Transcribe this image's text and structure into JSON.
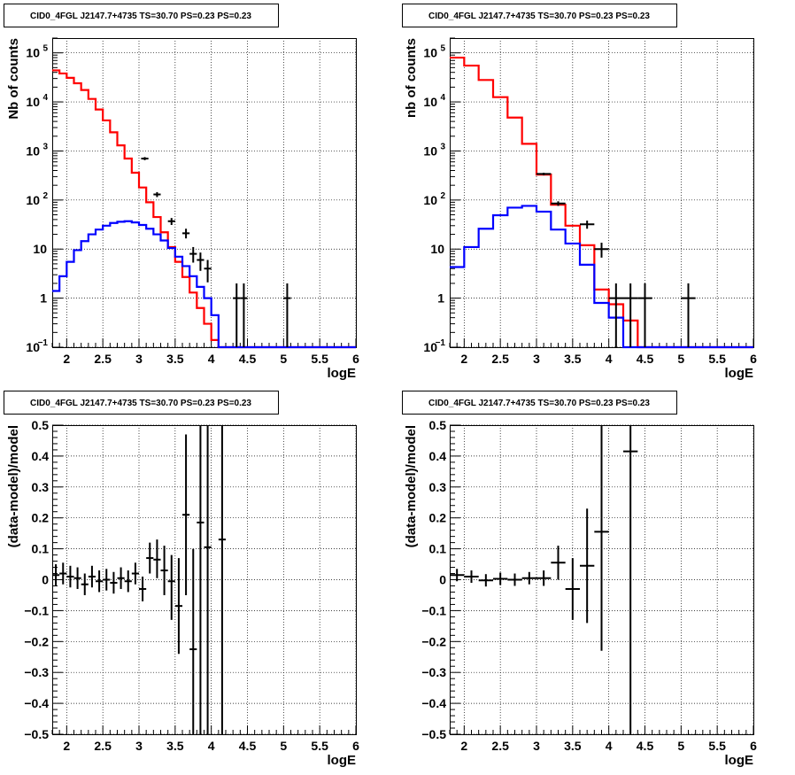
{
  "chart_data": [
    {
      "type": "histogram-log",
      "title": "CID0_4FGL J2147.7+4735 TS=30.70 PS=0.23 PS=0.23",
      "xlabel": "logE",
      "ylabel": "Nb of counts",
      "xlim": [
        1.8,
        6.0
      ],
      "ylim": [
        0.1,
        200000
      ],
      "log_y": true,
      "grid": true,
      "x_ticks": [
        "2",
        "2.5",
        "3",
        "3.5",
        "4",
        "4.5",
        "5",
        "5.5",
        "6"
      ],
      "y_ticks": [
        {
          "value": 0.1,
          "label": "10",
          "sup": "−1"
        },
        {
          "value": 1,
          "label": "1",
          "sup": ""
        },
        {
          "value": 10,
          "label": "10",
          "sup": ""
        },
        {
          "value": 100,
          "label": "10",
          "sup": "2"
        },
        {
          "value": 1000,
          "label": "10",
          "sup": "3"
        },
        {
          "value": 10000,
          "label": "10",
          "sup": "4"
        },
        {
          "value": 100000,
          "label": "10",
          "sup": "5"
        }
      ],
      "bin_edges": [
        1.8,
        1.9,
        2.0,
        2.1,
        2.2,
        2.3,
        2.4,
        2.5,
        2.6,
        2.7,
        2.8,
        2.9,
        3.0,
        3.1,
        3.2,
        3.3,
        3.4,
        3.5,
        3.6,
        3.7,
        3.8,
        3.9,
        4.0,
        4.1,
        4.2,
        4.3,
        4.4,
        4.5,
        4.6,
        4.7,
        4.8,
        4.9,
        5.0,
        5.1,
        5.2,
        5.3,
        5.4,
        5.5,
        5.6,
        5.7,
        5.8,
        5.9,
        6.0
      ],
      "series": [
        {
          "color": "#ff0000",
          "values": [
            44000,
            38000,
            31000,
            24000,
            17500,
            11500,
            7000,
            4200,
            2400,
            1300,
            700,
            360,
            180,
            90,
            45,
            22,
            11,
            5.5,
            2.7,
            1.3,
            0.63,
            0.3,
            0.14,
            0.1,
            0.1,
            0.1,
            0.1,
            0.1,
            0.1,
            0.1,
            0.1,
            0.1,
            0.1,
            0.1,
            0.1,
            0.1,
            0.1,
            0.1,
            0.1,
            0.1,
            0.1,
            0.1
          ]
        },
        {
          "color": "#0000ff",
          "values": [
            1.4,
            2.8,
            5.5,
            9.5,
            14.5,
            20,
            25,
            30,
            34,
            36,
            37,
            35,
            31,
            26,
            20,
            15,
            10.5,
            7,
            4.5,
            2.8,
            1.7,
            1.0,
            0.45,
            0.1,
            0.1,
            0.1,
            0.1,
            0.1,
            0.1,
            0.1,
            0.1,
            0.1,
            0.1,
            0.1,
            0.1,
            0.1,
            0.1,
            0.1,
            0.1,
            0.1,
            0.1,
            0.1
          ]
        }
      ],
      "points": [
        {
          "x": 3.08,
          "xerr": 0.05,
          "y": 700,
          "ylo": 650,
          "yhi": 750
        },
        {
          "x": 3.25,
          "xerr": 0.05,
          "y": 130,
          "ylo": 115,
          "yhi": 145
        },
        {
          "x": 3.45,
          "xerr": 0.05,
          "y": 37,
          "ylo": 31,
          "yhi": 43
        },
        {
          "x": 3.65,
          "xerr": 0.05,
          "y": 21,
          "ylo": 16.5,
          "yhi": 26
        },
        {
          "x": 3.75,
          "xerr": 0.05,
          "y": 8,
          "ylo": 5.3,
          "yhi": 11
        },
        {
          "x": 3.85,
          "xerr": 0.05,
          "y": 6,
          "ylo": 3.6,
          "yhi": 8.5
        },
        {
          "x": 3.95,
          "xerr": 0.05,
          "y": 4,
          "ylo": 2.1,
          "yhi": 6
        },
        {
          "x": 4.35,
          "xerr": 0.05,
          "y": 1,
          "ylo": 0.1,
          "yhi": 2
        },
        {
          "x": 4.45,
          "xerr": 0.05,
          "y": 1,
          "ylo": 0.1,
          "yhi": 2
        },
        {
          "x": 5.05,
          "xerr": 0.05,
          "y": 1,
          "ylo": 0.1,
          "yhi": 2
        }
      ]
    },
    {
      "type": "histogram-log",
      "title": "CID0_4FGL J2147.7+4735 TS=30.70 PS=0.23 PS=0.23",
      "xlabel": "logE",
      "ylabel": "nb of counts",
      "xlim": [
        1.8,
        6.0
      ],
      "ylim": [
        0.1,
        200000
      ],
      "log_y": true,
      "grid": true,
      "x_ticks": [
        "2",
        "2.5",
        "3",
        "3.5",
        "4",
        "4.5",
        "5",
        "5.5",
        "6"
      ],
      "y_ticks": [
        {
          "value": 0.1,
          "label": "10",
          "sup": "−1"
        },
        {
          "value": 1,
          "label": "1",
          "sup": ""
        },
        {
          "value": 10,
          "label": "10",
          "sup": ""
        },
        {
          "value": 100,
          "label": "10",
          "sup": "2"
        },
        {
          "value": 1000,
          "label": "10",
          "sup": "3"
        },
        {
          "value": 10000,
          "label": "10",
          "sup": "4"
        },
        {
          "value": 100000,
          "label": "10",
          "sup": "5"
        }
      ],
      "bin_edges": [
        1.8,
        2.0,
        2.2,
        2.4,
        2.6,
        2.8,
        3.0,
        3.2,
        3.4,
        3.6,
        3.8,
        4.0,
        4.2,
        4.4,
        4.6,
        4.8,
        5.0,
        5.2,
        5.4,
        5.6,
        5.8,
        6.0
      ],
      "series": [
        {
          "color": "#ff0000",
          "values": [
            80000,
            55000,
            28000,
            12500,
            4800,
            1400,
            330,
            80,
            30,
            12,
            1.5,
            0.75,
            0.35,
            0.1,
            0.1,
            0.1,
            0.1,
            0.1,
            0.1,
            0.1,
            0.1
          ]
        },
        {
          "color": "#0000ff",
          "values": [
            4.3,
            11,
            26,
            49,
            70,
            76,
            58,
            25,
            13,
            4.8,
            0.8,
            0.4,
            0.1,
            0.1,
            0.1,
            0.1,
            0.1,
            0.1,
            0.1,
            0.1,
            0.1
          ]
        }
      ],
      "points": [
        {
          "x": 3.1,
          "xerr": 0.1,
          "y": 340,
          "ylo": 320,
          "yhi": 360
        },
        {
          "x": 3.3,
          "xerr": 0.1,
          "y": 85,
          "ylo": 76,
          "yhi": 94
        },
        {
          "x": 3.7,
          "xerr": 0.1,
          "y": 32,
          "ylo": 26,
          "yhi": 38
        },
        {
          "x": 3.9,
          "xerr": 0.1,
          "y": 10,
          "ylo": 6.7,
          "yhi": 13.5
        },
        {
          "x": 4.1,
          "xerr": 0.1,
          "y": 1,
          "ylo": 0.1,
          "yhi": 2
        },
        {
          "x": 4.3,
          "xerr": 0.1,
          "y": 1,
          "ylo": 0.1,
          "yhi": 2
        },
        {
          "x": 4.5,
          "xerr": 0.1,
          "y": 1,
          "ylo": 0.1,
          "yhi": 2
        },
        {
          "x": 5.1,
          "xerr": 0.1,
          "y": 1,
          "ylo": 0.1,
          "yhi": 2
        }
      ]
    },
    {
      "type": "scatter-errorbar",
      "title": "CID0_4FGL J2147.7+4735 TS=30.70 PS=0.23 PS=0.23",
      "xlabel": "logE",
      "ylabel": "(data-model)/model",
      "xlim": [
        1.8,
        6.0
      ],
      "ylim": [
        -0.5,
        0.5
      ],
      "grid": true,
      "x_ticks": [
        "2",
        "2.5",
        "3",
        "3.5",
        "4",
        "4.5",
        "5",
        "5.5",
        "6"
      ],
      "y_ticks": [
        "−0.5",
        "−0.4",
        "−0.3",
        "−0.2",
        "−0.1",
        "0",
        "0.1",
        "0.2",
        "0.3",
        "0.4",
        "0.5"
      ],
      "points": [
        {
          "x": 1.85,
          "xerr": 0.05,
          "y": 0.015,
          "ylo": -0.02,
          "yhi": 0.05
        },
        {
          "x": 1.95,
          "xerr": 0.05,
          "y": 0.02,
          "ylo": -0.015,
          "yhi": 0.055
        },
        {
          "x": 2.05,
          "xerr": 0.05,
          "y": 0.01,
          "ylo": -0.025,
          "yhi": 0.045
        },
        {
          "x": 2.15,
          "xerr": 0.05,
          "y": 0.005,
          "ylo": -0.03,
          "yhi": 0.04
        },
        {
          "x": 2.25,
          "xerr": 0.05,
          "y": -0.015,
          "ylo": -0.05,
          "yhi": 0.02
        },
        {
          "x": 2.35,
          "xerr": 0.05,
          "y": 0.01,
          "ylo": -0.025,
          "yhi": 0.045
        },
        {
          "x": 2.45,
          "xerr": 0.05,
          "y": -0.005,
          "ylo": -0.04,
          "yhi": 0.03
        },
        {
          "x": 2.55,
          "xerr": 0.05,
          "y": 0.0,
          "ylo": -0.035,
          "yhi": 0.035
        },
        {
          "x": 2.65,
          "xerr": 0.05,
          "y": -0.01,
          "ylo": -0.045,
          "yhi": 0.025
        },
        {
          "x": 2.75,
          "xerr": 0.05,
          "y": 0.005,
          "ylo": -0.03,
          "yhi": 0.04
        },
        {
          "x": 2.85,
          "xerr": 0.05,
          "y": -0.005,
          "ylo": -0.04,
          "yhi": 0.03
        },
        {
          "x": 2.95,
          "xerr": 0.05,
          "y": 0.02,
          "ylo": -0.015,
          "yhi": 0.055
        },
        {
          "x": 3.05,
          "xerr": 0.05,
          "y": -0.03,
          "ylo": -0.07,
          "yhi": 0.01
        },
        {
          "x": 3.15,
          "xerr": 0.05,
          "y": 0.07,
          "ylo": 0.02,
          "yhi": 0.12
        },
        {
          "x": 3.25,
          "xerr": 0.05,
          "y": 0.065,
          "ylo": 0.005,
          "yhi": 0.13
        },
        {
          "x": 3.35,
          "xerr": 0.05,
          "y": 0.03,
          "ylo": -0.05,
          "yhi": 0.11
        },
        {
          "x": 3.45,
          "xerr": 0.05,
          "y": -0.005,
          "ylo": -0.13,
          "yhi": 0.08
        },
        {
          "x": 3.55,
          "xerr": 0.05,
          "y": -0.085,
          "ylo": -0.24,
          "yhi": 0.07
        },
        {
          "x": 3.65,
          "xerr": 0.05,
          "y": 0.21,
          "ylo": -0.05,
          "yhi": 0.47
        },
        {
          "x": 3.75,
          "xerr": 0.05,
          "y": -0.225,
          "ylo": -0.5,
          "yhi": 0.1
        },
        {
          "x": 3.85,
          "xerr": 0.05,
          "y": 0.185,
          "ylo": -0.5,
          "yhi": 0.5
        },
        {
          "x": 3.95,
          "xerr": 0.05,
          "y": 0.105,
          "ylo": -0.5,
          "yhi": 0.5
        },
        {
          "x": 4.15,
          "xerr": 0.05,
          "y": 0.13,
          "ylo": -0.5,
          "yhi": 0.5
        }
      ]
    },
    {
      "type": "scatter-errorbar",
      "title": "CID0_4FGL J2147.7+4735 TS=30.70 PS=0.23 PS=0.23",
      "xlabel": "logE",
      "ylabel": "(data-model)/model",
      "xlim": [
        1.8,
        6.0
      ],
      "ylim": [
        -0.5,
        0.5
      ],
      "grid": true,
      "x_ticks": [
        "2",
        "2.5",
        "3",
        "3.5",
        "4",
        "4.5",
        "5",
        "5.5",
        "6"
      ],
      "y_ticks": [
        "−0.5",
        "−0.4",
        "−0.3",
        "−0.2",
        "−0.1",
        "0",
        "0.1",
        "0.2",
        "0.3",
        "0.4",
        "0.5"
      ],
      "points": [
        {
          "x": 1.9,
          "xerr": 0.1,
          "y": 0.015,
          "ylo": -0.005,
          "yhi": 0.035
        },
        {
          "x": 2.1,
          "xerr": 0.1,
          "y": 0.01,
          "ylo": -0.01,
          "yhi": 0.03
        },
        {
          "x": 2.3,
          "xerr": 0.1,
          "y": -0.002,
          "ylo": -0.022,
          "yhi": 0.018
        },
        {
          "x": 2.5,
          "xerr": 0.1,
          "y": 0.003,
          "ylo": -0.017,
          "yhi": 0.023
        },
        {
          "x": 2.7,
          "xerr": 0.1,
          "y": 0.0,
          "ylo": -0.02,
          "yhi": 0.02
        },
        {
          "x": 2.9,
          "xerr": 0.1,
          "y": 0.005,
          "ylo": -0.015,
          "yhi": 0.025
        },
        {
          "x": 3.1,
          "xerr": 0.1,
          "y": 0.005,
          "ylo": -0.02,
          "yhi": 0.03
        },
        {
          "x": 3.3,
          "xerr": 0.1,
          "y": 0.055,
          "ylo": 0.0,
          "yhi": 0.11
        },
        {
          "x": 3.5,
          "xerr": 0.1,
          "y": -0.03,
          "ylo": -0.13,
          "yhi": 0.07
        },
        {
          "x": 3.7,
          "xerr": 0.1,
          "y": 0.045,
          "ylo": -0.14,
          "yhi": 0.23
        },
        {
          "x": 3.9,
          "xerr": 0.1,
          "y": 0.155,
          "ylo": -0.23,
          "yhi": 0.5
        },
        {
          "x": 4.3,
          "xerr": 0.1,
          "y": 0.415,
          "ylo": -0.5,
          "yhi": 0.5
        }
      ]
    }
  ]
}
